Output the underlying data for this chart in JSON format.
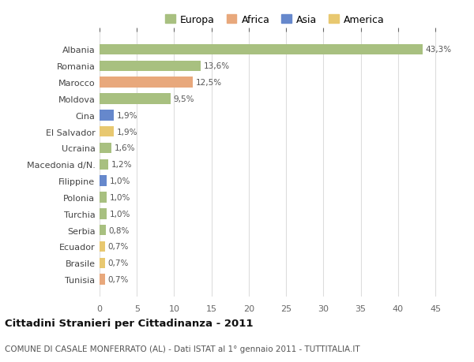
{
  "countries": [
    "Albania",
    "Romania",
    "Marocco",
    "Moldova",
    "Cina",
    "El Salvador",
    "Ucraina",
    "Macedonia d/N.",
    "Filippine",
    "Polonia",
    "Turchia",
    "Serbia",
    "Ecuador",
    "Brasile",
    "Tunisia"
  ],
  "values": [
    43.3,
    13.6,
    12.5,
    9.5,
    1.9,
    1.9,
    1.6,
    1.2,
    1.0,
    1.0,
    1.0,
    0.8,
    0.7,
    0.7,
    0.7
  ],
  "labels": [
    "43,3%",
    "13,6%",
    "12,5%",
    "9,5%",
    "1,9%",
    "1,9%",
    "1,6%",
    "1,2%",
    "1,0%",
    "1,0%",
    "1,0%",
    "0,8%",
    "0,7%",
    "0,7%",
    "0,7%"
  ],
  "continents": [
    "Europa",
    "Europa",
    "Africa",
    "Europa",
    "Asia",
    "America",
    "Europa",
    "Europa",
    "Asia",
    "Europa",
    "Europa",
    "Europa",
    "America",
    "America",
    "Africa"
  ],
  "colors": {
    "Europa": "#a8c080",
    "Africa": "#e8a87c",
    "Asia": "#6688cc",
    "America": "#e8c870"
  },
  "legend_colors": {
    "Europa": "#a8c080",
    "Africa": "#e8a87c",
    "Asia": "#6688cc",
    "America": "#e8c870"
  },
  "title_bold": "Cittadini Stranieri per Cittadinanza - 2011",
  "subtitle": "COMUNE DI CASALE MONFERRATO (AL) - Dati ISTAT al 1° gennaio 2011 - TUTTITALIA.IT",
  "xlim": [
    0,
    47
  ],
  "xticks": [
    0,
    5,
    10,
    15,
    20,
    25,
    30,
    35,
    40,
    45
  ],
  "background_color": "#ffffff",
  "grid_color": "#dddddd"
}
